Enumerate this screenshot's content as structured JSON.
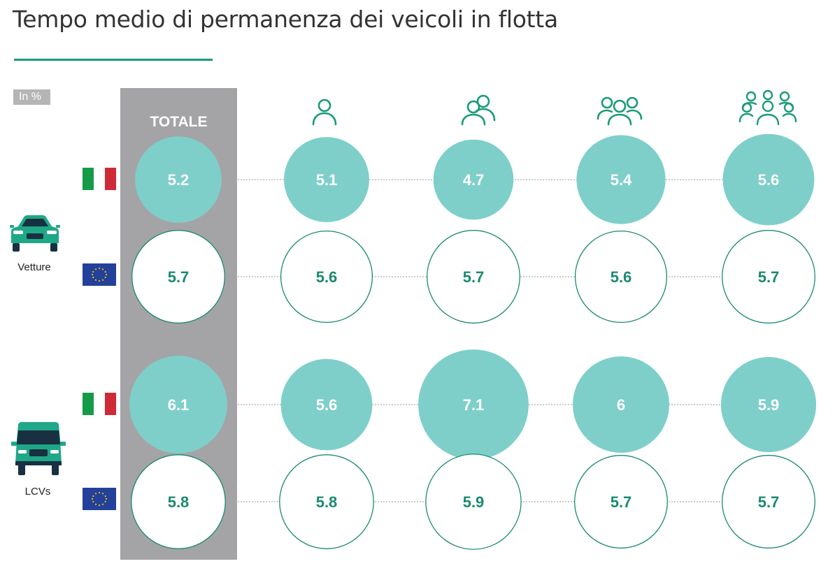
{
  "title": "Tempo medio di permanenza dei veicoli in flotta",
  "unit_label": "In %",
  "total_label": "TOTALE",
  "vehicles": [
    {
      "label": "Vetture",
      "icon": "car-icon"
    },
    {
      "label": "LCVs",
      "icon": "van-icon"
    }
  ],
  "segment_icons": [
    "single-person-icon",
    "two-people-icon",
    "three-people-icon",
    "group-people-icon"
  ],
  "region_icons": [
    "italy-flag-icon",
    "eu-flag-icon",
    "italy-flag-icon",
    "eu-flag-icon"
  ],
  "colors": {
    "accent": "#1a9a7a",
    "filled_bubble": "#7ecfca",
    "outline_bubble": "#1a8a70",
    "value_text_filled": "#ffffff",
    "value_text_outline": "#1a8a70",
    "total_column": "#a4a4a6",
    "italy_green": "#159a48",
    "italy_red": "#cf2a37",
    "eu_blue": "#23409a",
    "eu_stars": "#f6c400"
  },
  "chart_data": {
    "type": "table",
    "columns": [
      "TOTALE",
      "single-person-icon",
      "two-people-icon",
      "three-people-icon",
      "group-people-icon"
    ],
    "rows": [
      {
        "vehicle": "Vetture",
        "region": "italy-flag-icon",
        "style": "filled",
        "values": [
          5.2,
          5.1,
          4.7,
          5.4,
          5.6
        ],
        "labels": [
          "5.2",
          "5.1",
          "4.7",
          "5.4",
          "5.6"
        ]
      },
      {
        "vehicle": "Vetture",
        "region": "eu-flag-icon",
        "style": "outline",
        "values": [
          5.7,
          5.6,
          5.7,
          5.6,
          5.7
        ],
        "labels": [
          "5.7",
          "5.6",
          "5.7",
          "5.6",
          "5.7"
        ]
      },
      {
        "vehicle": "LCVs",
        "region": "italy-flag-icon",
        "style": "filled",
        "values": [
          6.1,
          5.6,
          7.1,
          6,
          5.9
        ],
        "labels": [
          "6.1",
          "5.6",
          "7.1",
          "6",
          "5.9"
        ]
      },
      {
        "vehicle": "LCVs",
        "region": "eu-flag-icon",
        "style": "outline",
        "values": [
          5.8,
          5.8,
          5.9,
          5.7,
          5.7
        ],
        "labels": [
          "5.8",
          "5.8",
          "5.9",
          "5.7",
          "5.7"
        ]
      }
    ]
  }
}
